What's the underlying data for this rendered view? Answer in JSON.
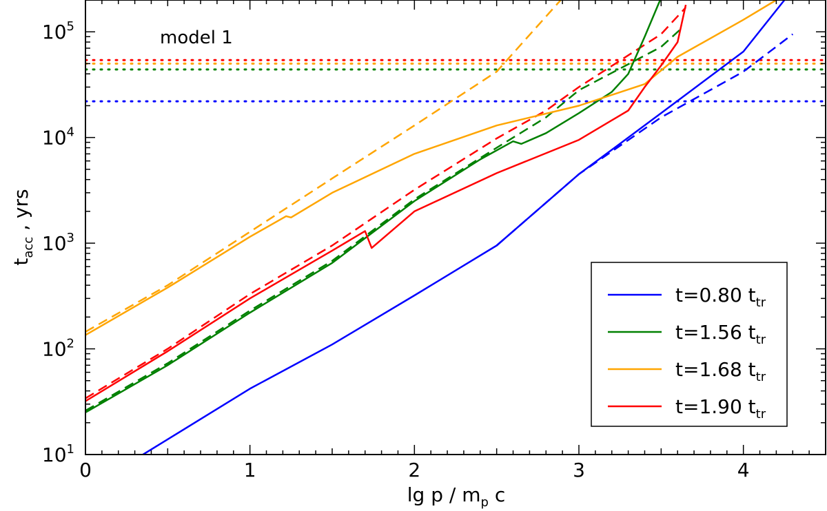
{
  "chart_data": {
    "type": "line",
    "xlabel": {
      "main": "lg p / m",
      "sub": "p",
      "tail": " c"
    },
    "ylabel": {
      "main": "t",
      "sub": "acc",
      "tail": " , yrs"
    },
    "xlim": [
      0,
      4.5
    ],
    "ylim": [
      10,
      200000
    ],
    "yscale": "log",
    "x_ticks": [
      "0",
      "1",
      "2",
      "3",
      "4"
    ],
    "x_tick_values": [
      0,
      1,
      2,
      3,
      4
    ],
    "y_ticks": [
      {
        "value": 10,
        "base": "10",
        "exp": "1"
      },
      {
        "value": 100,
        "base": "10",
        "exp": "2"
      },
      {
        "value": 1000,
        "base": "10",
        "exp": "3"
      },
      {
        "value": 10000,
        "base": "10",
        "exp": "4"
      },
      {
        "value": 100000,
        "base": "10",
        "exp": "5"
      }
    ],
    "annotation": "model 1",
    "legend_position": "bottom-right",
    "grid": false,
    "series": [
      {
        "name": "t=0.80 t_tr",
        "label_main": "t=0.80 t",
        "label_sub": "tr",
        "color": "#0000ff",
        "solid": [
          [
            0.35,
            10
          ],
          [
            1.0,
            42
          ],
          [
            1.5,
            110
          ],
          [
            2.0,
            320
          ],
          [
            2.5,
            950
          ],
          [
            3.0,
            4500
          ],
          [
            3.5,
            17000
          ],
          [
            4.0,
            65000
          ],
          [
            4.25,
            200000
          ]
        ],
        "dashed": [
          [
            2.5,
            950
          ],
          [
            3.0,
            4500
          ],
          [
            3.5,
            15500
          ],
          [
            4.0,
            42000
          ],
          [
            4.3,
            95000
          ]
        ],
        "dotted": 22000
      },
      {
        "name": "t=1.56 t_tr",
        "label_main": "t=1.56 t",
        "label_sub": "tr",
        "color": "#008000",
        "solid": [
          [
            0,
            25
          ],
          [
            0.5,
            70
          ],
          [
            1.0,
            220
          ],
          [
            1.5,
            650
          ],
          [
            2.0,
            2500
          ],
          [
            2.4,
            6200
          ],
          [
            2.6,
            9200
          ],
          [
            2.65,
            8700
          ],
          [
            2.8,
            11000
          ],
          [
            3.0,
            17000
          ],
          [
            3.2,
            27000
          ],
          [
            3.3,
            40000
          ],
          [
            3.4,
            90000
          ],
          [
            3.5,
            210000
          ]
        ],
        "dashed": [
          [
            0,
            26
          ],
          [
            0.5,
            73
          ],
          [
            1.0,
            230
          ],
          [
            1.5,
            680
          ],
          [
            2.0,
            2600
          ],
          [
            2.5,
            8000
          ],
          [
            2.8,
            15500
          ],
          [
            3.0,
            28000
          ],
          [
            3.5,
            72000
          ],
          [
            3.63,
            110000
          ]
        ],
        "dotted": 44000
      },
      {
        "name": "t=1.68 t_tr",
        "label_main": "t=1.68 t",
        "label_sub": "tr",
        "color": "#ffa500",
        "solid": [
          [
            0,
            135
          ],
          [
            0.5,
            380
          ],
          [
            1.0,
            1150
          ],
          [
            1.22,
            1800
          ],
          [
            1.25,
            1750
          ],
          [
            1.5,
            3000
          ],
          [
            2.0,
            7000
          ],
          [
            2.5,
            13000
          ],
          [
            3.0,
            20000
          ],
          [
            3.4,
            32000
          ],
          [
            3.6,
            58000
          ],
          [
            4.0,
            130000
          ],
          [
            4.2,
            200000
          ]
        ],
        "dashed": [
          [
            0,
            145
          ],
          [
            0.5,
            400
          ],
          [
            1.0,
            1280
          ],
          [
            1.5,
            4100
          ],
          [
            2.0,
            13000
          ],
          [
            2.5,
            42000
          ],
          [
            2.89,
            200000
          ]
        ],
        "dotted": 50000
      },
      {
        "name": "t=1.90 t_tr",
        "label_main": "t=1.90 t",
        "label_sub": "tr",
        "color": "#ff0000",
        "solid": [
          [
            0,
            32
          ],
          [
            0.5,
            95
          ],
          [
            1.0,
            300
          ],
          [
            1.5,
            850
          ],
          [
            1.7,
            1300
          ],
          [
            1.74,
            900
          ],
          [
            2.0,
            2000
          ],
          [
            2.5,
            4600
          ],
          [
            3.0,
            9500
          ],
          [
            3.3,
            18000
          ],
          [
            3.4,
            30000
          ],
          [
            3.5,
            48000
          ],
          [
            3.6,
            80000
          ],
          [
            3.65,
            180000
          ]
        ],
        "dashed": [
          [
            0,
            34
          ],
          [
            0.5,
            100
          ],
          [
            1.0,
            330
          ],
          [
            1.5,
            950
          ],
          [
            2.0,
            3200
          ],
          [
            2.5,
            9800
          ],
          [
            2.8,
            18000
          ],
          [
            3.0,
            30000
          ],
          [
            3.5,
            95000
          ],
          [
            3.65,
            170000
          ]
        ],
        "dotted": 54000
      }
    ]
  }
}
